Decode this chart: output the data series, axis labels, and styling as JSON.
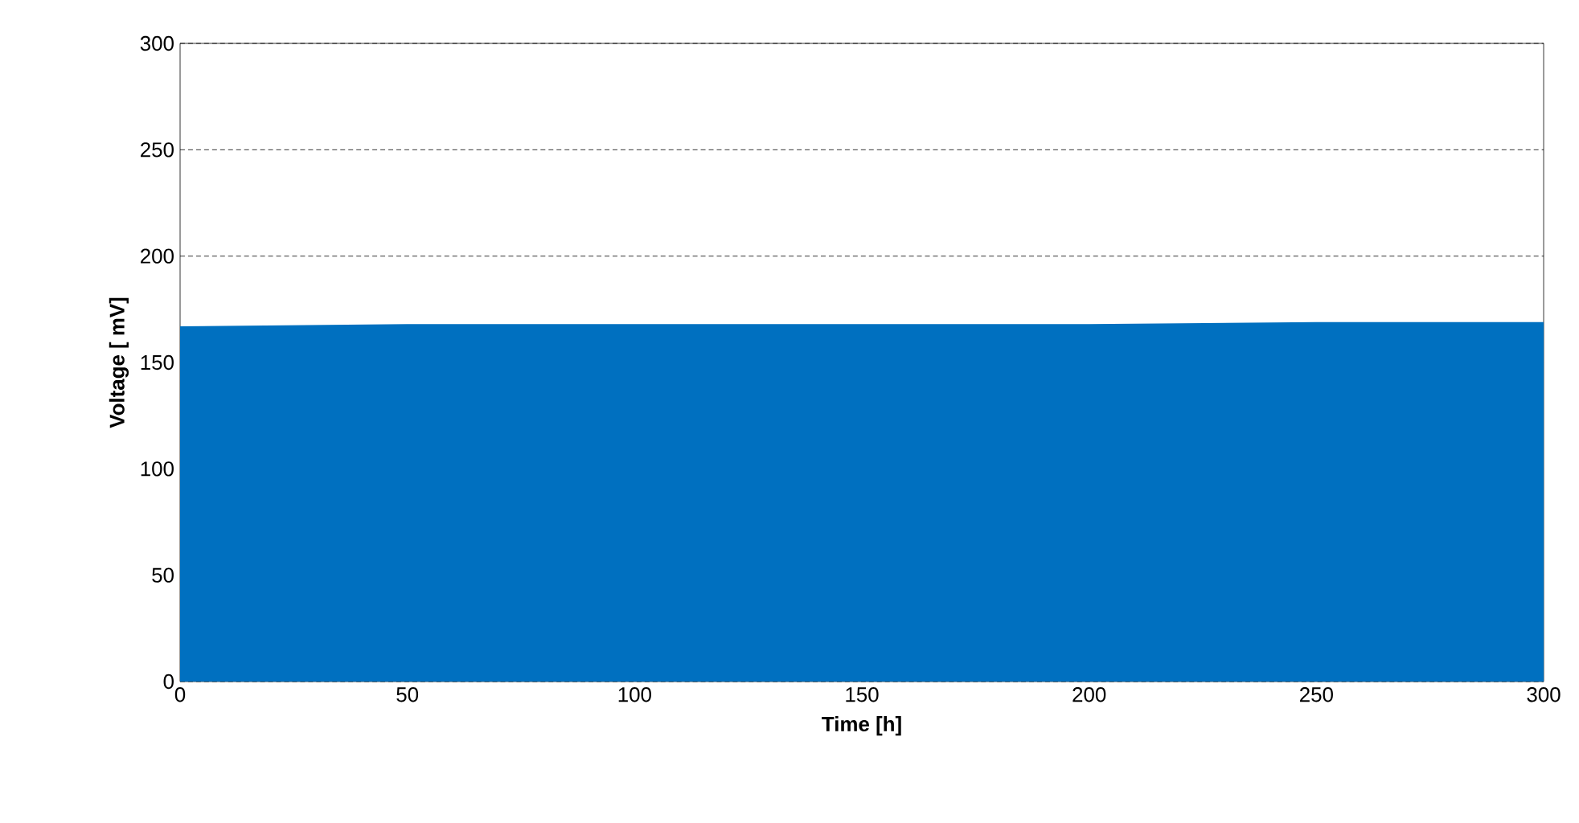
{
  "chart_data": {
    "type": "area",
    "xlabel": "Time [h]",
    "ylabel": "Voltage [ mV]",
    "x": [
      0,
      50,
      100,
      150,
      200,
      250,
      300
    ],
    "series": [
      {
        "color": "#0070c0",
        "values": [
          167,
          168,
          168,
          168,
          168,
          169,
          169
        ]
      }
    ],
    "xlim": [
      0,
      300
    ],
    "ylim": [
      0,
      300
    ],
    "xticks": [
      0,
      50,
      100,
      150,
      200,
      250,
      300
    ],
    "yticks": [
      0,
      50,
      100,
      150,
      200,
      250,
      300
    ],
    "grid": "y",
    "line_style": "dashed"
  }
}
